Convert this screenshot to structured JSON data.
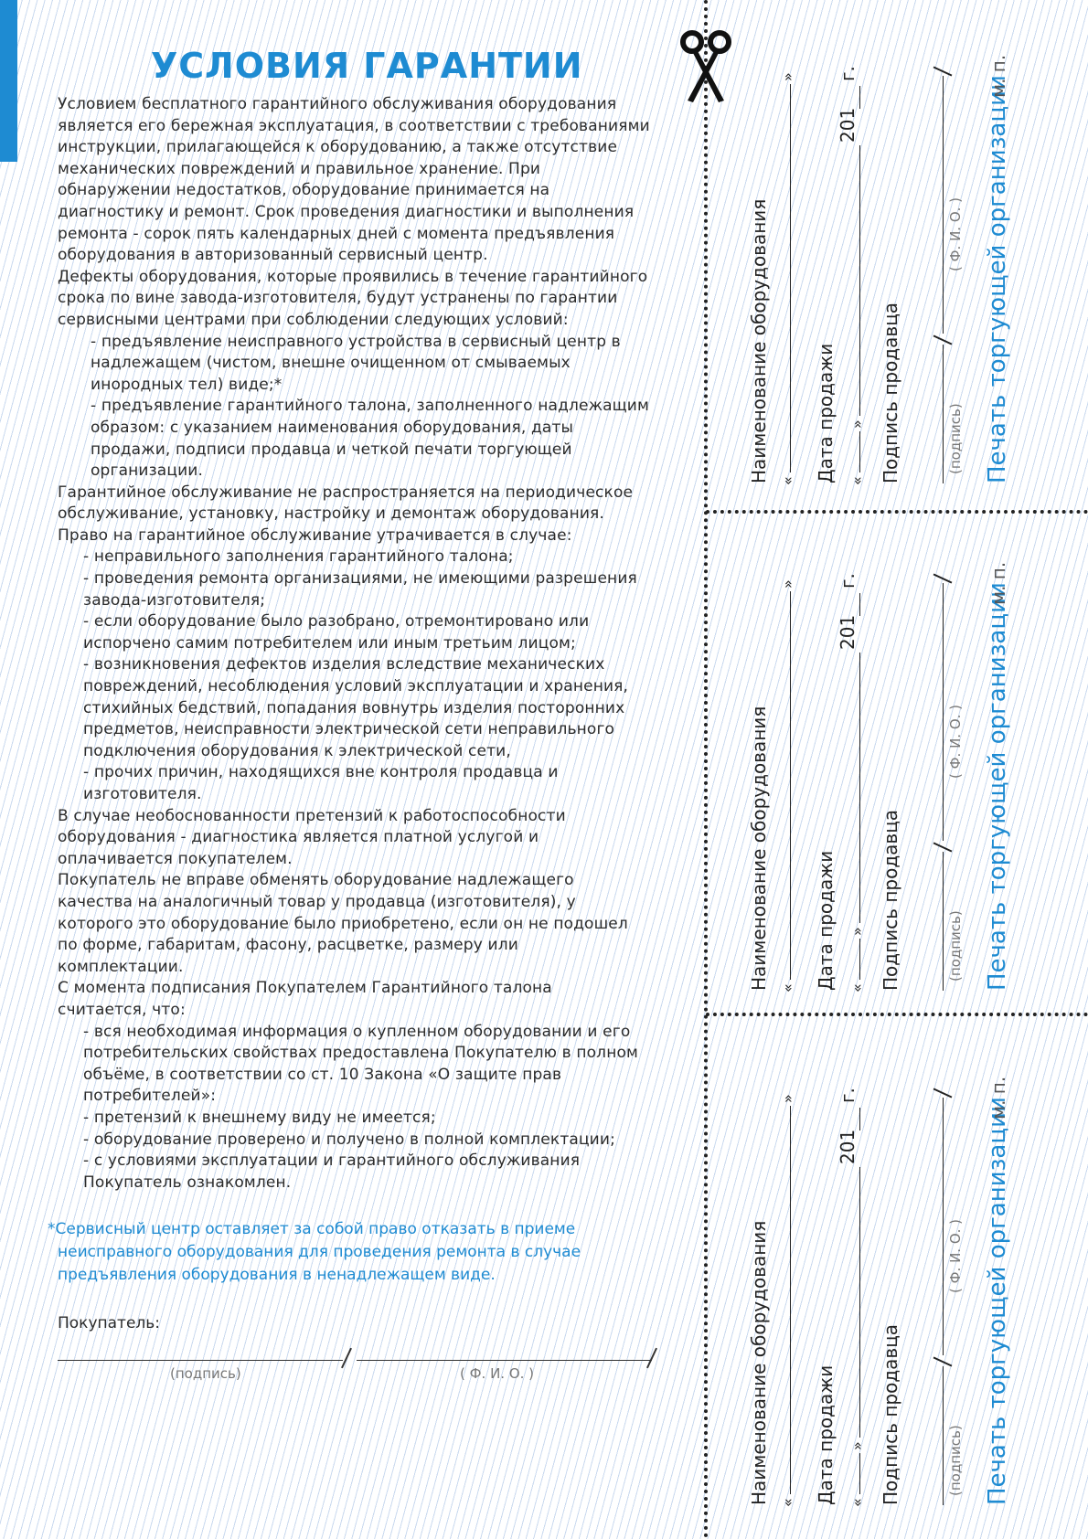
{
  "title": "УСЛОВИЯ ГАРАНТИИ",
  "colors": {
    "accent": "#1e8bd2",
    "stripes": "#c9d9ef"
  },
  "body_lines": [
    {
      "indent": 0,
      "text": "Условием бесплатного гарантийного обслуживания оборудования"
    },
    {
      "indent": 0,
      "text": "является его бережная эксплуатация, в соответствии с требованиями"
    },
    {
      "indent": 0,
      "text": "инструкции, прилагающейся к оборудованию, а также отсутствие"
    },
    {
      "indent": 0,
      "text": "механических повреждений и правильное хранение. При"
    },
    {
      "indent": 0,
      "text": "обнаружении недостатков, оборудование принимается на"
    },
    {
      "indent": 0,
      "text": "диагностику и ремонт. Срок проведения диагностики и выполнения"
    },
    {
      "indent": 0,
      "text": "ремонта - сорок пять календарных дней с момента предъявления"
    },
    {
      "indent": 0,
      "text": "оборудования в авторизованный сервисный центр."
    },
    {
      "indent": 0,
      "text": "Дефекты оборудования, которые проявились в течение гарантийного"
    },
    {
      "indent": 0,
      "text": "срока по вине завода-изготовителя, будут устранены по гарантии"
    },
    {
      "indent": 0,
      "text": "сервисными центрами при соблюдении следующих условий:"
    },
    {
      "indent": 1,
      "text": "- предъявление неисправного устройства в сервисный центр в"
    },
    {
      "indent": 1,
      "text": "надлежащем (чистом, внешне очищенном от смываемых"
    },
    {
      "indent": 1,
      "text": "инородных тел) виде;*"
    },
    {
      "indent": 1,
      "text": "- предъявление гарантийного талона, заполненного надлежащим"
    },
    {
      "indent": 1,
      "text": "образом: с указанием наименования оборудования, даты"
    },
    {
      "indent": 1,
      "text": "продажи, подписи продавца и четкой печати торгующей"
    },
    {
      "indent": 1,
      "text": "организации."
    },
    {
      "indent": 0,
      "text": "Гарантийное обслуживание не распространяется на периодическое"
    },
    {
      "indent": 0,
      "text": "обслуживание, установку, настройку и демонтаж оборудования."
    },
    {
      "indent": 0,
      "text": "Право на гарантийное обслуживание утрачивается в случае:"
    },
    {
      "indent": 2,
      "text": "- неправильного заполнения гарантийного талона;"
    },
    {
      "indent": 2,
      "text": "- проведения ремонта организациями, не имеющими разрешения"
    },
    {
      "indent": 2,
      "text": "завода-изготовителя;"
    },
    {
      "indent": 2,
      "text": "- если оборудование было разобрано, отремонтировано или"
    },
    {
      "indent": 2,
      "text": "испорчено самим потребителем или иным третьим лицом;"
    },
    {
      "indent": 2,
      "text": "- возникновения дефектов изделия вследствие механических"
    },
    {
      "indent": 2,
      "text": "повреждений, несоблюдения условий эксплуатации и хранения,"
    },
    {
      "indent": 2,
      "text": "стихийных бедствий, попадания вовнутрь изделия посторонних"
    },
    {
      "indent": 2,
      "text": "предметов, неисправности электрической сети  неправильного"
    },
    {
      "indent": 2,
      "text": "подключения оборудования к электрической сети,"
    },
    {
      "indent": 2,
      "text": " - прочих причин, находящихся вне контроля продавца и"
    },
    {
      "indent": 2,
      "text": "изготовителя."
    },
    {
      "indent": 0,
      "text": "В случае необоснованности претензий к работоспособности"
    },
    {
      "indent": 0,
      "text": "оборудования - диагностика является платной услугой и"
    },
    {
      "indent": 0,
      "text": "оплачивается покупателем."
    },
    {
      "indent": 0,
      "text": "Покупатель не вправе обменять оборудование надлежащего"
    },
    {
      "indent": 0,
      "text": "качества на аналогичный товар у продавца (изготовителя), у"
    },
    {
      "indent": 0,
      "text": "которого это оборудование было приобретено, если он не подошел"
    },
    {
      "indent": 0,
      "text": "по форме, габаритам, фасону, расцветке, размеру или"
    },
    {
      "indent": 0,
      "text": "комплектации."
    },
    {
      "indent": 0,
      "text": "С момента подписания Покупателем Гарантийного талона"
    },
    {
      "indent": 0,
      "text": "считается, что:"
    },
    {
      "indent": 2,
      "text": "- вся необходимая информация о купленном оборудовании и его"
    },
    {
      "indent": 2,
      "text": "потребительских свойствах предоставлена Покупателю в полном"
    },
    {
      "indent": 2,
      "text": "объёме, в соответствии со ст. 10 Закона «О защите прав"
    },
    {
      "indent": 2,
      "text": "потребителей»:"
    },
    {
      "indent": 2,
      "text": "- претензий к внешнему виду не имеется;"
    },
    {
      "indent": 2,
      "text": "- оборудование проверено и получено в полной комплектации;"
    },
    {
      "indent": 2,
      "text": "- с условиями эксплуатации и гарантийного обслуживания"
    },
    {
      "indent": 2,
      "text": "Покупатель ознакомлен."
    }
  ],
  "footnote": {
    "marker": "*",
    "lines": [
      "Сервисный центр оставляет за собой право отказать в приеме",
      "неисправного оборудования для проведения ремонта в случае",
      "предъявления оборудования в ненадлежащем виде."
    ]
  },
  "buyer": {
    "label": "Покупатель:",
    "signature_hint": "(подпись)",
    "name_hint": "( Ф. И. О. )"
  },
  "coupon": {
    "equipment_label": "Наименование оборудования",
    "open_quote": "«",
    "close_quote": "»",
    "date_label": "Дата продажи",
    "year_prefix": "201",
    "year_suffix": "г.",
    "seller_signature_label": "Подпись продавца",
    "signature_hint": "(подпись)",
    "name_hint": "( Ф. И. О. )",
    "stamp_label": "Печать торгующей организации",
    "stamp_place": "м. п."
  },
  "cut_icon": "scissors-icon"
}
